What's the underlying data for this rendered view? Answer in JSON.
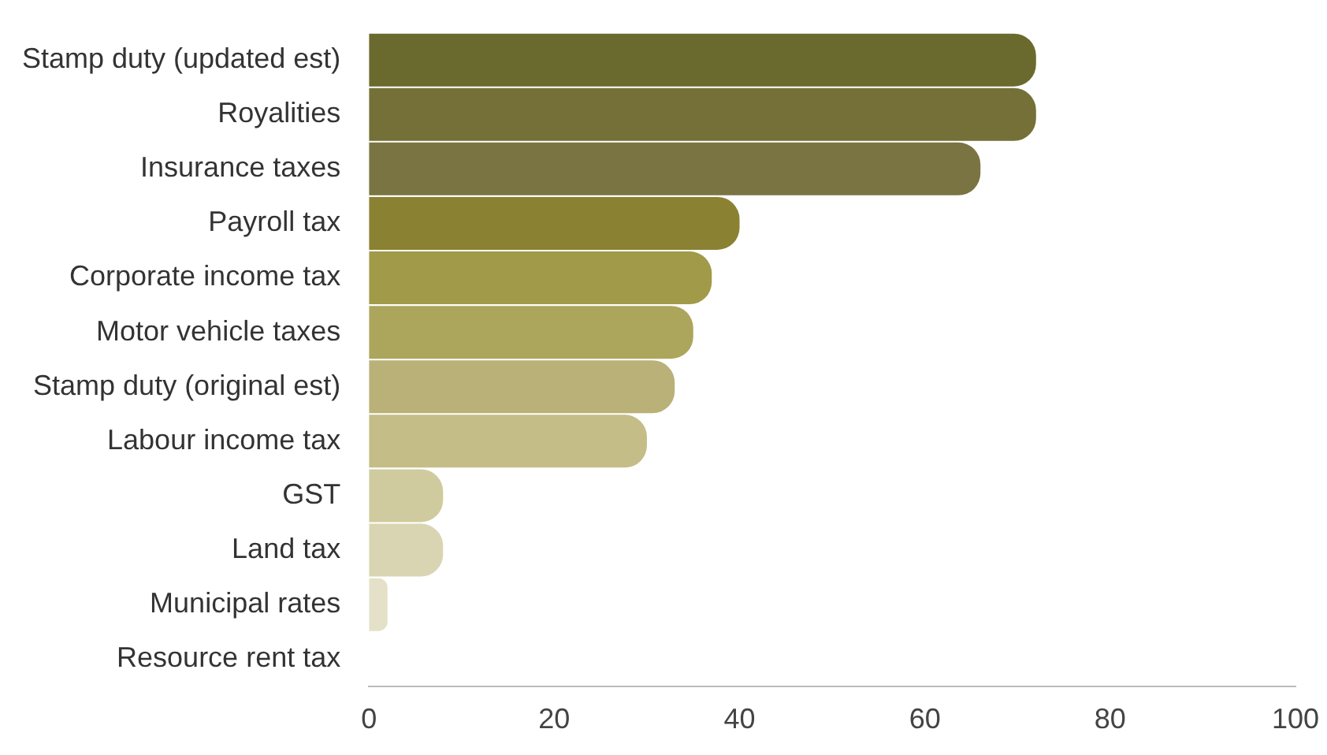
{
  "chart_data": {
    "type": "bar",
    "orientation": "horizontal",
    "categories": [
      "Stamp duty (updated est)",
      "Royalities",
      "Insurance taxes",
      "Payroll tax",
      "Corporate income tax",
      "Motor vehicle taxes",
      "Stamp duty (original est)",
      "Labour income tax",
      "GST",
      "Land tax",
      "Municipal rates",
      "Resource rent tax"
    ],
    "values": [
      72,
      72,
      66,
      40,
      37,
      35,
      33,
      30,
      8,
      8,
      2,
      0
    ],
    "colors": [
      "#6b6a2e",
      "#747038",
      "#7a7442",
      "#8a8232",
      "#a19a48",
      "#aca55c",
      "#b9b177",
      "#c4bd88",
      "#d0cb9e",
      "#d9d5b2",
      "#e4e1c8",
      "#ece9d8"
    ],
    "xlim": [
      0,
      100
    ],
    "xticks": [
      0,
      20,
      40,
      60,
      80,
      100
    ],
    "grid": false,
    "legend": false
  }
}
